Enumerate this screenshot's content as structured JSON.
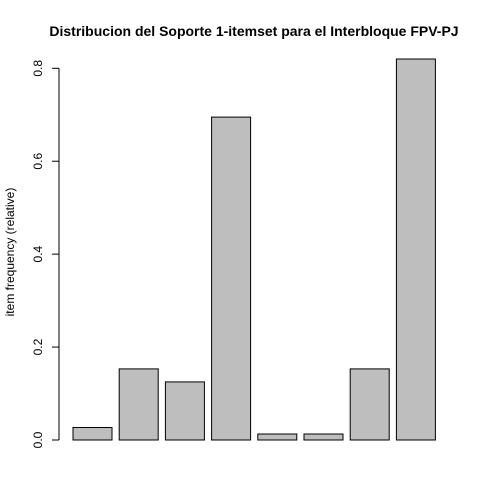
{
  "chart_data": {
    "type": "bar",
    "title": "Distribucion del Soporte 1-itemset para el Interbloque FPV-PJ",
    "xlabel": "",
    "ylabel": "item frequency (relative)",
    "categories": [
      "",
      "",
      "",
      "",
      "",
      "",
      "",
      ""
    ],
    "values": [
      0.027,
      0.153,
      0.125,
      0.695,
      0.013,
      0.013,
      0.153,
      0.82
    ],
    "ylim": [
      0,
      0.82
    ],
    "yticks": [
      0.0,
      0.2,
      0.4,
      0.6,
      0.8
    ],
    "ytick_labels": [
      "0.0",
      "0.2",
      "0.4",
      "0.6",
      "0.8"
    ],
    "grid": false,
    "bar_color": "#bebebe"
  }
}
